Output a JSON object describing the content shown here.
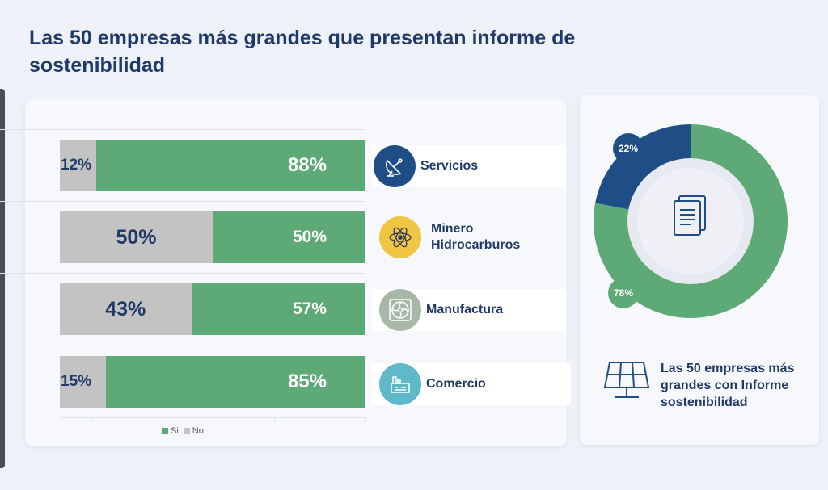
{
  "title": "Las 50 empresas más grandes  que  presentan informe de\nsostenibilidad",
  "colors": {
    "si": "#5daa77",
    "no": "#c3c3c3",
    "dark_blue": "#1f4e86",
    "title": "#1f3a68"
  },
  "chart_data": [
    {
      "type": "bar",
      "orientation": "horizontal",
      "stacked": true,
      "categories": [
        "Servicios",
        "Minero Hidrocarburos",
        "Manufactura",
        "Comercio"
      ],
      "series": [
        {
          "name": "Si",
          "values": [
            88,
            50,
            57,
            85
          ],
          "labels": [
            "88%",
            "50%",
            "57%",
            "85%"
          ]
        },
        {
          "name": "No",
          "values": [
            12,
            50,
            43,
            15
          ],
          "labels": [
            "12%",
            "50%",
            "43%",
            "15%"
          ]
        }
      ],
      "legend_position": "bottom-left",
      "category_icons": [
        "satellite-dish-icon",
        "atom-icon",
        "fan-icon",
        "factory-icon"
      ]
    },
    {
      "type": "pie",
      "donut": true,
      "slices": [
        {
          "value": 22,
          "label": "22%",
          "color": "#1f4e86"
        },
        {
          "value": 78,
          "label": "78%",
          "color": "#5daa77"
        }
      ],
      "center_icon": "document-icon",
      "caption": "Las 50 empresas más grandes con Informe sostenibilidad"
    }
  ],
  "legend": {
    "si": "Si",
    "no": "No"
  },
  "categories": {
    "servicios": "Servicios",
    "minero_line1": "Minero",
    "minero_line2": "Hidrocarburos",
    "manufactura": "Manufactura",
    "comercio": "Comercio"
  },
  "bars": {
    "row1": {
      "no": "12%",
      "si": "88%"
    },
    "row2": {
      "no": "50%",
      "si": "50%"
    },
    "row3": {
      "no": "43%",
      "si": "57%"
    },
    "row4": {
      "no": "15%",
      "si": "85%"
    }
  },
  "donut_labels": {
    "blue": "22%",
    "green": "78%"
  },
  "caption": "Las 50 empresas más grandes con Informe sostenibilidad"
}
